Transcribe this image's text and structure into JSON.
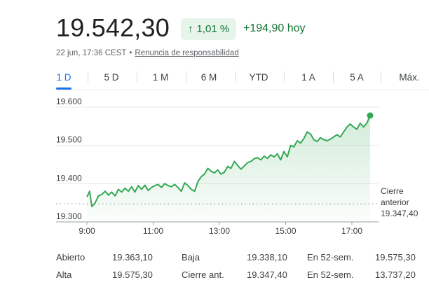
{
  "quote": {
    "price": "19.542,30",
    "change_pct": "1,01 %",
    "change_arrow": "↑",
    "change_abs": "+194,90 hoy",
    "timestamp": "22 jun, 17:36 CEST",
    "separator": "•",
    "disclaimer": "Renuncia de responsabilidad"
  },
  "tabs": [
    {
      "label": "1 D",
      "active": true
    },
    {
      "label": "5 D",
      "active": false
    },
    {
      "label": "1 M",
      "active": false
    },
    {
      "label": "6 M",
      "active": false
    },
    {
      "label": "YTD",
      "active": false
    },
    {
      "label": "1 A",
      "active": false
    },
    {
      "label": "5 A",
      "active": false
    },
    {
      "label": "Máx.",
      "active": false
    }
  ],
  "chart_data": {
    "type": "area",
    "y_ticks": [
      "19.600",
      "19.500",
      "19.400",
      "19.300"
    ],
    "y_tick_values": [
      19600,
      19500,
      19400,
      19300
    ],
    "x_ticks": [
      "9:00",
      "11:00",
      "13:00",
      "15:00",
      "17:00"
    ],
    "x_tick_hours": [
      9,
      11,
      13,
      15,
      17
    ],
    "ylim": [
      19300,
      19600
    ],
    "xlim": [
      9,
      18.3
    ],
    "previous_close": 19347.4,
    "previous_close_label": [
      "Cierre",
      "anterior",
      "19.347,40"
    ],
    "line_color": "#34a853",
    "series": [
      {
        "x": [
          9.0,
          9.08,
          9.15,
          9.25,
          9.35,
          9.45,
          9.55,
          9.65,
          9.75,
          9.85,
          9.95,
          10.05,
          10.15,
          10.25,
          10.35,
          10.45,
          10.55,
          10.65,
          10.75,
          10.85,
          10.95,
          11.05,
          11.15,
          11.25,
          11.35,
          11.45,
          11.55,
          11.65,
          11.75,
          11.85,
          11.95,
          12.05,
          12.15,
          12.25,
          12.35,
          12.45,
          12.55,
          12.65,
          12.75,
          12.85,
          12.95,
          13.05,
          13.15,
          13.25,
          13.35,
          13.45,
          13.55,
          13.65,
          13.75,
          13.85,
          13.95,
          14.05,
          14.15,
          14.25,
          14.35,
          14.45,
          14.55,
          14.65,
          14.75,
          14.85,
          14.95,
          15.05,
          15.15,
          15.25,
          15.35,
          15.45,
          15.55,
          15.65,
          15.75,
          15.85,
          15.95,
          16.05,
          16.15,
          16.25,
          16.35,
          16.45,
          16.55,
          16.65,
          16.75,
          16.85,
          16.95,
          17.05,
          17.15,
          17.25,
          17.35,
          17.45,
          17.55
        ],
        "y": [
          19365,
          19380,
          19340,
          19350,
          19368,
          19372,
          19380,
          19370,
          19378,
          19368,
          19385,
          19378,
          19388,
          19380,
          19392,
          19378,
          19395,
          19385,
          19396,
          19382,
          19390,
          19395,
          19398,
          19390,
          19400,
          19395,
          19392,
          19398,
          19390,
          19380,
          19402,
          19395,
          19385,
          19380,
          19405,
          19418,
          19425,
          19440,
          19432,
          19428,
          19436,
          19425,
          19430,
          19445,
          19440,
          19458,
          19448,
          19438,
          19446,
          19455,
          19458,
          19465,
          19468,
          19462,
          19472,
          19466,
          19475,
          19470,
          19478,
          19462,
          19484,
          19470,
          19500,
          19496,
          19512,
          19506,
          19518,
          19535,
          19530,
          19515,
          19510,
          19520,
          19515,
          19512,
          19516,
          19522,
          19528,
          19522,
          19535,
          19548,
          19556,
          19548,
          19542,
          19558,
          19548,
          19558,
          19578
        ]
      }
    ]
  },
  "stats": {
    "rows": [
      [
        {
          "label": "Abierto",
          "value": "19.363,10"
        },
        {
          "label": "Baja",
          "value": "19.338,10"
        },
        {
          "label": "En 52-sem.",
          "value": "19.575,30"
        }
      ],
      [
        {
          "label": "Alta",
          "value": "19.575,30"
        },
        {
          "label": "Cierre ant.",
          "value": "19.347,40"
        },
        {
          "label": "En 52-sem.",
          "value": "13.737,20"
        }
      ]
    ]
  }
}
